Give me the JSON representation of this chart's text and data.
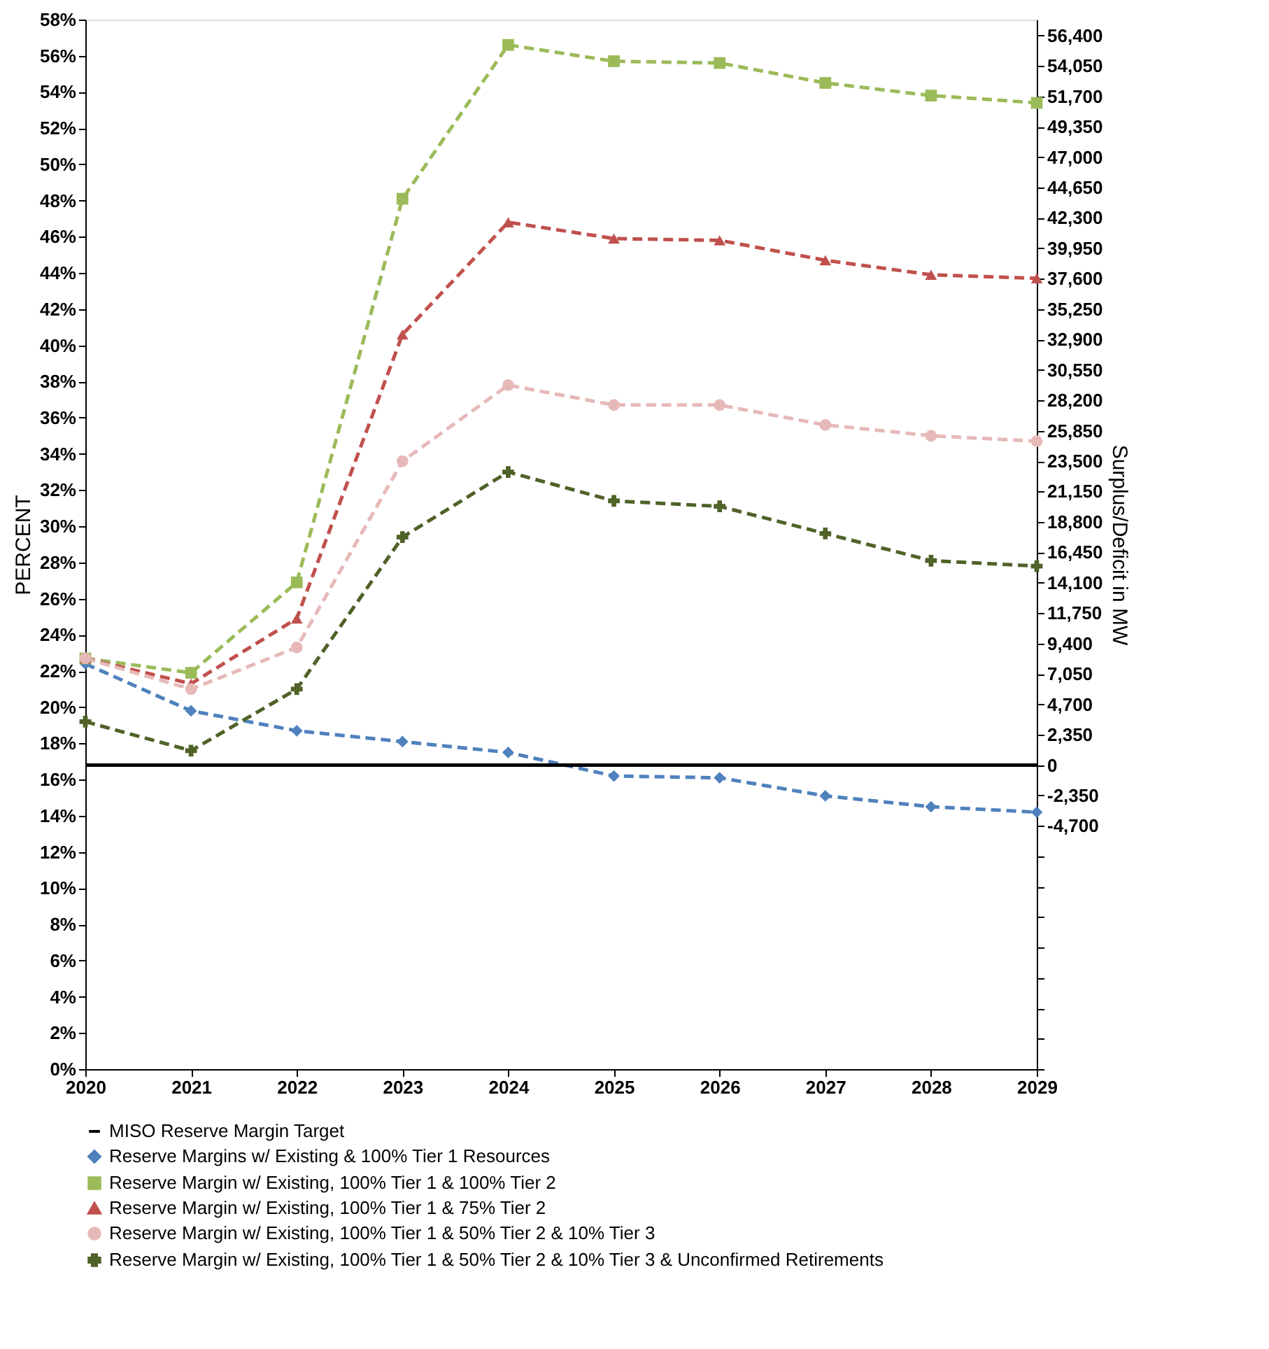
{
  "chart_data": {
    "type": "line",
    "ylabel": "PERCENT",
    "y2label": "Surplus/Deficit in MW",
    "x": [
      2020,
      2021,
      2022,
      2023,
      2024,
      2025,
      2026,
      2027,
      2028,
      2029
    ],
    "xlim": [
      2020,
      2029
    ],
    "xticks": [
      2020,
      2021,
      2022,
      2023,
      2024,
      2025,
      2026,
      2027,
      2028,
      2029
    ],
    "ylim": [
      0,
      58
    ],
    "yticks": [
      {
        "value": 0,
        "label": "0%"
      },
      {
        "value": 2,
        "label": "2%"
      },
      {
        "value": 4,
        "label": "4%"
      },
      {
        "value": 6,
        "label": "6%"
      },
      {
        "value": 8,
        "label": "8%"
      },
      {
        "value": 10,
        "label": "10%"
      },
      {
        "value": 12,
        "label": "12%"
      },
      {
        "value": 14,
        "label": "14%"
      },
      {
        "value": 16,
        "label": "16%"
      },
      {
        "value": 18,
        "label": "18%"
      },
      {
        "value": 20,
        "label": "20%"
      },
      {
        "value": 22,
        "label": "22%"
      },
      {
        "value": 24,
        "label": "24%"
      },
      {
        "value": 26,
        "label": "26%"
      },
      {
        "value": 28,
        "label": "28%"
      },
      {
        "value": 30,
        "label": "30%"
      },
      {
        "value": 32,
        "label": "32%"
      },
      {
        "value": 34,
        "label": "34%"
      },
      {
        "value": 36,
        "label": "36%"
      },
      {
        "value": 38,
        "label": "38%"
      },
      {
        "value": 40,
        "label": "40%"
      },
      {
        "value": 42,
        "label": "42%"
      },
      {
        "value": 44,
        "label": "44%"
      },
      {
        "value": 46,
        "label": "46%"
      },
      {
        "value": 48,
        "label": "48%"
      },
      {
        "value": 50,
        "label": "50%"
      },
      {
        "value": 52,
        "label": "52%"
      },
      {
        "value": 54,
        "label": "54%"
      },
      {
        "value": 56,
        "label": "56%"
      },
      {
        "value": 58,
        "label": "58%"
      }
    ],
    "y2lim": [
      -23500,
      57631
    ],
    "y2ticks": [
      {
        "value": -23500,
        "label": null
      },
      {
        "value": -21150,
        "label": null
      },
      {
        "value": -18800,
        "label": null
      },
      {
        "value": -16450,
        "label": null
      },
      {
        "value": -14100,
        "label": null
      },
      {
        "value": -11750,
        "label": null
      },
      {
        "value": -9400,
        "label": null
      },
      {
        "value": -7050,
        "label": null
      },
      {
        "value": -4700,
        "label": "-4,700"
      },
      {
        "value": -2350,
        "label": "-2,350"
      },
      {
        "value": 0,
        "label": "0"
      },
      {
        "value": 2350,
        "label": "2,350"
      },
      {
        "value": 4700,
        "label": "4,700"
      },
      {
        "value": 7050,
        "label": "7,050"
      },
      {
        "value": 9400,
        "label": "9,400"
      },
      {
        "value": 11750,
        "label": "11,750"
      },
      {
        "value": 14100,
        "label": "14,100"
      },
      {
        "value": 16450,
        "label": "16,450"
      },
      {
        "value": 18800,
        "label": "18,800"
      },
      {
        "value": 21150,
        "label": "21,150"
      },
      {
        "value": 23500,
        "label": "23,500"
      },
      {
        "value": 25850,
        "label": "25,850"
      },
      {
        "value": 28200,
        "label": "28,200"
      },
      {
        "value": 30550,
        "label": "30,550"
      },
      {
        "value": 32900,
        "label": "32,900"
      },
      {
        "value": 35250,
        "label": "35,250"
      },
      {
        "value": 37600,
        "label": "37,600"
      },
      {
        "value": 39950,
        "label": "39,950"
      },
      {
        "value": 42300,
        "label": "42,300"
      },
      {
        "value": 44650,
        "label": "44,650"
      },
      {
        "value": 47000,
        "label": "47,000"
      },
      {
        "value": 49350,
        "label": "49,350"
      },
      {
        "value": 51700,
        "label": "51,700"
      },
      {
        "value": 54050,
        "label": "54,050"
      },
      {
        "value": 56400,
        "label": "56,400"
      }
    ],
    "ref_lines": [
      {
        "axis": "y",
        "value": 16.8,
        "label": "MISO Reserve Margin Target",
        "color": "#000000",
        "line_style": "solid"
      }
    ],
    "legend": "bottom",
    "grid": false,
    "series": [
      {
        "name": "Reserve Margins w/ Existing & 100% Tier 1 Resources",
        "color": "#4f81bd",
        "marker": "diamond",
        "line_style": "dashed",
        "values": [
          22.4,
          19.8,
          18.7,
          18.1,
          17.5,
          16.2,
          16.1,
          15.1,
          14.5,
          14.2
        ]
      },
      {
        "name": "Reserve Margin w/ Existing, 100% Tier 1 & 100% Tier 2",
        "color": "#9bbb59",
        "marker": "square",
        "line_style": "dashed",
        "values": [
          22.7,
          21.9,
          26.9,
          48.1,
          56.6,
          55.7,
          55.6,
          54.5,
          53.8,
          53.4
        ]
      },
      {
        "name": "Reserve Margin w/ Existing, 100% Tier 1 & 75% Tier 2",
        "color": "#c0504d",
        "marker": "triangle",
        "line_style": "dashed",
        "values": [
          22.7,
          21.3,
          24.9,
          40.6,
          46.8,
          45.9,
          45.8,
          44.7,
          43.9,
          43.7
        ]
      },
      {
        "name": "Reserve Margin w/ Existing, 100% Tier 1 & 50% Tier 2 & 10% Tier 3",
        "color": "#e6b9b8",
        "marker": "circle",
        "line_style": "dashed",
        "values": [
          22.7,
          21.0,
          23.3,
          33.6,
          37.8,
          36.7,
          36.7,
          35.6,
          35.0,
          34.7
        ]
      },
      {
        "name": "Reserve Margin w/ Existing, 100% Tier 1 & 50% Tier 2 & 10% Tier 3 & Unconfirmed Retirements",
        "color": "#4f6228",
        "marker": "cross",
        "line_style": "dashed",
        "values": [
          19.2,
          17.6,
          21.0,
          29.4,
          33.0,
          31.4,
          31.1,
          29.6,
          28.1,
          27.8
        ]
      }
    ]
  }
}
